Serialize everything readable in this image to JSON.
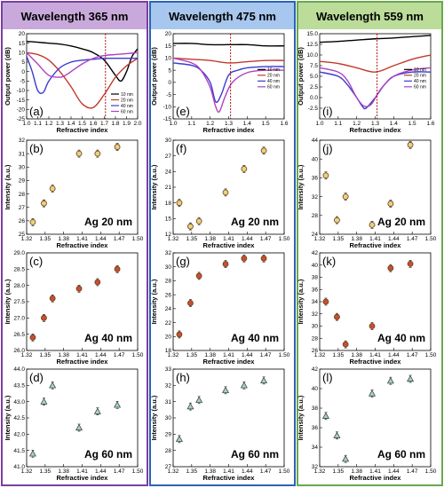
{
  "columns": [
    {
      "title": "Wavelength 365 nm",
      "border_color": "#7b3fa0",
      "header_color": "#c9a9dc"
    },
    {
      "title": "Wavelength 475 nm",
      "border_color": "#2b63b5",
      "header_color": "#a7c7ee"
    },
    {
      "title": "Wavelength 559 nm",
      "border_color": "#6aa84f",
      "header_color": "#bcdc9a"
    }
  ],
  "chart_data": [
    {
      "panel": "(a)",
      "type": "line",
      "xlabel": "Refractive index",
      "ylabel": "Output power (dB)",
      "xlim": [
        1.0,
        2.0
      ],
      "ylim": [
        -25,
        20
      ],
      "xticks": [
        1.0,
        1.1,
        1.2,
        1.3,
        1.4,
        1.5,
        1.6,
        1.7,
        1.8,
        1.9,
        2.0
      ],
      "yticks": [
        -25,
        -20,
        -15,
        -10,
        -5,
        0,
        5,
        10,
        15,
        20
      ],
      "vline": 1.71,
      "legend_position": "bottom-right",
      "series": [
        {
          "name": "10 nm",
          "color": "#000000",
          "x": [
            1.0,
            1.1,
            1.2,
            1.3,
            1.4,
            1.5,
            1.6,
            1.7,
            1.8,
            1.85,
            1.9,
            1.95,
            2.0
          ],
          "values": [
            16,
            15.5,
            15,
            14.5,
            13.5,
            12,
            10,
            6,
            -2,
            -5,
            0,
            8,
            12
          ]
        },
        {
          "name": "20 nm",
          "color": "#c0392b",
          "x": [
            1.0,
            1.1,
            1.2,
            1.3,
            1.4,
            1.5,
            1.6,
            1.7,
            1.8,
            1.9,
            2.0
          ],
          "values": [
            10,
            9,
            6,
            0,
            -8,
            -17,
            -19,
            -12,
            -3,
            3,
            7
          ]
        },
        {
          "name": "40 nm",
          "color": "#3b3bd0",
          "x": [
            1.0,
            1.05,
            1.1,
            1.15,
            1.2,
            1.3,
            1.4,
            1.5,
            1.6,
            1.7,
            1.8,
            1.9,
            2.0
          ],
          "values": [
            8,
            0,
            -10,
            -11,
            -5,
            2,
            5,
            6,
            6.5,
            7,
            7,
            7,
            7
          ]
        },
        {
          "name": "60 nm",
          "color": "#b040c0",
          "x": [
            1.0,
            1.1,
            1.2,
            1.3,
            1.35,
            1.4,
            1.5,
            1.6,
            1.7,
            1.8,
            1.9,
            2.0
          ],
          "values": [
            10,
            4,
            -2,
            -3,
            -2,
            0,
            4,
            7,
            8.5,
            9,
            9.5,
            10
          ]
        }
      ]
    },
    {
      "panel": "(e)",
      "type": "line",
      "xlabel": "Refractive index",
      "ylabel": "Output power (dB)",
      "xlim": [
        1.0,
        1.6
      ],
      "ylim": [
        -15,
        20
      ],
      "xticks": [
        1.0,
        1.1,
        1.2,
        1.3,
        1.4,
        1.5,
        1.6
      ],
      "yticks": [
        -15,
        -10,
        -5,
        0,
        5,
        10,
        15,
        20
      ],
      "vline": 1.31,
      "legend_position": "right",
      "series": [
        {
          "name": "10 nm",
          "color": "#000000",
          "x": [
            1.0,
            1.1,
            1.2,
            1.3,
            1.4,
            1.5,
            1.6
          ],
          "values": [
            16,
            16,
            15.5,
            15.5,
            15.5,
            15,
            15
          ]
        },
        {
          "name": "20 nm",
          "color": "#c0392b",
          "x": [
            1.0,
            1.1,
            1.2,
            1.3,
            1.4,
            1.5,
            1.6
          ],
          "values": [
            10,
            9.5,
            9,
            8,
            8.5,
            9,
            9
          ]
        },
        {
          "name": "40 nm",
          "color": "#3b3bd0",
          "x": [
            1.0,
            1.1,
            1.15,
            1.2,
            1.23,
            1.26,
            1.3,
            1.35,
            1.4,
            1.5,
            1.6
          ],
          "values": [
            8,
            7,
            5,
            0,
            -8,
            -5,
            3,
            5,
            6,
            6.5,
            6.5
          ]
        },
        {
          "name": "60 nm",
          "color": "#b040c0",
          "x": [
            1.0,
            1.1,
            1.15,
            1.2,
            1.23,
            1.25,
            1.28,
            1.32,
            1.4,
            1.5,
            1.6
          ],
          "values": [
            10,
            8,
            5,
            -2,
            -10,
            -12,
            -6,
            0,
            4,
            5,
            5
          ]
        }
      ]
    },
    {
      "panel": "(i)",
      "type": "line",
      "xlabel": "Refractive index",
      "ylabel": "Output power (dB)",
      "xlim": [
        1.0,
        1.6
      ],
      "ylim": [
        -5,
        15
      ],
      "xticks": [
        1.0,
        1.1,
        1.2,
        1.3,
        1.4,
        1.5,
        1.6
      ],
      "yticks": [
        -2.5,
        0.0,
        2.5,
        5.0,
        7.5,
        10.0,
        12.5,
        15.0
      ],
      "vline": 1.31,
      "legend_position": "right",
      "series": [
        {
          "name": "10 nm",
          "color": "#000000",
          "x": [
            1.0,
            1.1,
            1.2,
            1.3,
            1.4,
            1.5,
            1.6
          ],
          "values": [
            13,
            13.2,
            13.5,
            13.8,
            14,
            14.3,
            14.6
          ]
        },
        {
          "name": "20 nm",
          "color": "#c0392b",
          "x": [
            1.0,
            1.1,
            1.2,
            1.3,
            1.4,
            1.5,
            1.6
          ],
          "values": [
            8.5,
            8,
            7,
            6,
            7.5,
            9,
            10
          ]
        },
        {
          "name": "40 nm",
          "color": "#3b3bd0",
          "x": [
            1.0,
            1.1,
            1.15,
            1.2,
            1.23,
            1.25,
            1.3,
            1.35,
            1.4,
            1.5,
            1.6
          ],
          "values": [
            6,
            5,
            3,
            0,
            -2,
            -2.5,
            0,
            3,
            5,
            6,
            6
          ]
        },
        {
          "name": "60 nm",
          "color": "#b040c0",
          "x": [
            1.0,
            1.1,
            1.15,
            1.2,
            1.24,
            1.28,
            1.33,
            1.4,
            1.5,
            1.6
          ],
          "values": [
            7,
            6,
            4,
            0,
            -2,
            -1.5,
            2,
            5,
            6.5,
            7
          ]
        }
      ]
    },
    {
      "panel": "(b)",
      "type": "scatter",
      "annotation": "Ag 20 nm",
      "xlabel": "Refractive index",
      "ylabel": "Intensity (a.u.)",
      "xlim": [
        1.32,
        1.5
      ],
      "ylim": [
        25,
        32
      ],
      "xticks": [
        1.32,
        1.35,
        1.38,
        1.41,
        1.44,
        1.47,
        1.5
      ],
      "yticks": [
        25,
        26,
        27,
        28,
        29,
        30,
        31,
        32
      ],
      "marker": "circle",
      "marker_fill": "#e8d37a",
      "x": [
        1.33,
        1.348,
        1.362,
        1.405,
        1.435,
        1.467
      ],
      "values": [
        25.9,
        27.3,
        28.4,
        31.0,
        31.0,
        31.5
      ]
    },
    {
      "panel": "(c)",
      "type": "scatter",
      "annotation": "Ag 40 nm",
      "xlabel": "Refractive index",
      "ylabel": "Intensity (a.u.)",
      "xlim": [
        1.32,
        1.5
      ],
      "ylim": [
        26,
        29
      ],
      "xticks": [
        1.32,
        1.35,
        1.38,
        1.41,
        1.44,
        1.47,
        1.5
      ],
      "yticks": [
        26.0,
        26.5,
        27.0,
        27.5,
        28.0,
        28.5,
        29.0
      ],
      "marker": "circle",
      "marker_fill": "#c8502e",
      "x": [
        1.33,
        1.348,
        1.362,
        1.405,
        1.435,
        1.467
      ],
      "values": [
        26.4,
        27.0,
        27.6,
        27.9,
        28.1,
        28.5
      ]
    },
    {
      "panel": "(d)",
      "type": "scatter",
      "annotation": "Ag 60 nm",
      "xlabel": "Refractive index",
      "ylabel": "Intensity (a.u.)",
      "xlim": [
        1.32,
        1.5
      ],
      "ylim": [
        41,
        44
      ],
      "xticks": [
        1.32,
        1.35,
        1.38,
        1.41,
        1.44,
        1.47,
        1.5
      ],
      "yticks": [
        41.0,
        41.5,
        42.0,
        42.5,
        43.0,
        43.5,
        44.0
      ],
      "marker": "triangle",
      "marker_fill": "#9fd6cc",
      "x": [
        1.33,
        1.348,
        1.362,
        1.405,
        1.435,
        1.467
      ],
      "values": [
        41.4,
        43.0,
        43.5,
        42.2,
        42.7,
        42.9
      ]
    },
    {
      "panel": "(f)",
      "type": "scatter",
      "annotation": "Ag 20 nm",
      "xlabel": "Refractive index",
      "ylabel": "Intensity (a.u.)",
      "xlim": [
        1.32,
        1.5
      ],
      "ylim": [
        12,
        30
      ],
      "xticks": [
        1.32,
        1.35,
        1.38,
        1.41,
        1.44,
        1.47,
        1.5
      ],
      "yticks": [
        12,
        15,
        18,
        21,
        24,
        27,
        30
      ],
      "marker": "circle",
      "marker_fill": "#e8d37a",
      "x": [
        1.33,
        1.348,
        1.362,
        1.405,
        1.435,
        1.467
      ],
      "values": [
        18.0,
        13.5,
        14.5,
        20.0,
        24.5,
        28.0
      ]
    },
    {
      "panel": "(g)",
      "type": "scatter",
      "annotation": "Ag 40 nm",
      "xlabel": "Refractive index",
      "ylabel": "Intensity (a.u.)",
      "xlim": [
        1.32,
        1.5
      ],
      "ylim": [
        18,
        32
      ],
      "xticks": [
        1.32,
        1.35,
        1.38,
        1.41,
        1.44,
        1.47,
        1.5
      ],
      "yticks": [
        18,
        20,
        22,
        24,
        26,
        28,
        30,
        32
      ],
      "marker": "circle",
      "marker_fill": "#c8502e",
      "x": [
        1.33,
        1.348,
        1.362,
        1.405,
        1.435,
        1.467
      ],
      "values": [
        20.3,
        24.8,
        28.7,
        30.4,
        31.2,
        31.2
      ]
    },
    {
      "panel": "(h)",
      "type": "scatter",
      "annotation": "Ag 60 nm",
      "xlabel": "Refractive index",
      "ylabel": "Intensity (a.u.)",
      "xlim": [
        1.32,
        1.5
      ],
      "ylim": [
        27,
        33
      ],
      "xticks": [
        1.32,
        1.35,
        1.38,
        1.41,
        1.44,
        1.47,
        1.5
      ],
      "yticks": [
        27,
        28,
        29,
        30,
        31,
        32,
        33
      ],
      "marker": "triangle",
      "marker_fill": "#9fd6cc",
      "x": [
        1.33,
        1.348,
        1.362,
        1.405,
        1.435,
        1.467
      ],
      "values": [
        28.7,
        30.7,
        31.1,
        31.7,
        32.0,
        32.3
      ]
    },
    {
      "panel": "(j)",
      "type": "scatter",
      "annotation": "Ag 20 nm",
      "xlabel": "Refractive index",
      "ylabel": "Intensity (a.u.)",
      "xlim": [
        1.32,
        1.5
      ],
      "ylim": [
        24,
        44
      ],
      "xticks": [
        1.32,
        1.35,
        1.38,
        1.41,
        1.44,
        1.47,
        1.5
      ],
      "yticks": [
        24,
        28,
        32,
        36,
        40,
        44
      ],
      "marker": "circle",
      "marker_fill": "#e8d37a",
      "x": [
        1.33,
        1.348,
        1.362,
        1.405,
        1.435,
        1.467
      ],
      "values": [
        36.5,
        27.0,
        32.0,
        26.0,
        30.5,
        43.0
      ]
    },
    {
      "panel": "(k)",
      "type": "scatter",
      "annotation": "Ag 40 nm",
      "xlabel": "Refractive index",
      "ylabel": "Intensity (a.u.)",
      "xlim": [
        1.32,
        1.5
      ],
      "ylim": [
        26,
        42
      ],
      "xticks": [
        1.32,
        1.35,
        1.38,
        1.41,
        1.44,
        1.47,
        1.5
      ],
      "yticks": [
        26,
        28,
        30,
        32,
        34,
        36,
        38,
        40,
        42
      ],
      "marker": "circle",
      "marker_fill": "#c8502e",
      "x": [
        1.33,
        1.348,
        1.362,
        1.405,
        1.435,
        1.467
      ],
      "values": [
        34.0,
        31.5,
        27.0,
        30.0,
        39.5,
        40.2
      ]
    },
    {
      "panel": "(l)",
      "type": "scatter",
      "annotation": "Ag 60 nm",
      "xlabel": "Refractive index",
      "ylabel": "Intensity (a.u.)",
      "xlim": [
        1.32,
        1.5
      ],
      "ylim": [
        32,
        42
      ],
      "xticks": [
        1.32,
        1.35,
        1.38,
        1.41,
        1.44,
        1.47,
        1.5
      ],
      "yticks": [
        32,
        34,
        36,
        38,
        40,
        42
      ],
      "marker": "triangle",
      "marker_fill": "#9fd6cc",
      "x": [
        1.33,
        1.348,
        1.362,
        1.405,
        1.435,
        1.467
      ],
      "values": [
        37.2,
        35.2,
        32.8,
        39.5,
        40.8,
        41.0
      ]
    }
  ]
}
